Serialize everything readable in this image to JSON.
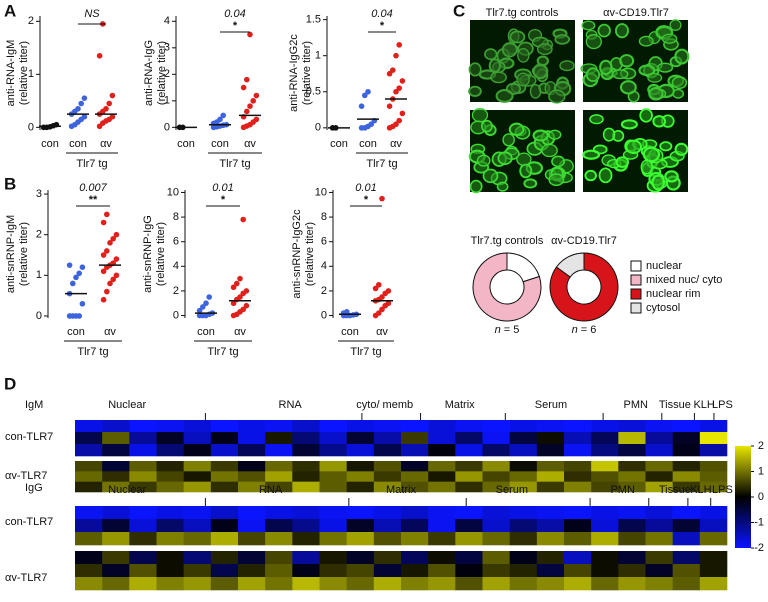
{
  "panel_labels": [
    "A",
    "B",
    "C",
    "D"
  ],
  "image_titles": [
    "Tlr7.tg controls",
    "αv-CD19.Tlr7"
  ],
  "donut_legend": {
    "categories": [
      "nuclear",
      "mixed nuc/ cyto",
      "nuclear rim",
      "cytosol"
    ],
    "colors": [
      "#ffffff",
      "#f2b6c6",
      "#d8141b",
      "#e4e4e4"
    ]
  },
  "chart_data": [
    {
      "type": "strip",
      "ylabel": "anti-RNA-IgM",
      "ylabel_unit": "(relative titer)",
      "ylim": [
        -0.05,
        2.1
      ],
      "yticks": [
        0,
        1,
        2
      ],
      "group_label": "Tlr7 tg",
      "sig_text": "NS",
      "groups": [
        {
          "category": "con",
          "color": "#111111",
          "values": [
            0,
            0,
            0.01,
            0.03,
            0.05
          ],
          "mean": 0.02
        },
        {
          "category": "con",
          "color": "#3d63dd",
          "values": [
            0.02,
            0.05,
            0.1,
            0.15,
            0.2,
            0.25,
            0.3,
            0.35,
            0.45,
            0.55
          ],
          "mean": 0.25
        },
        {
          "category": "αv",
          "color": "#e0201b",
          "values": [
            0.02,
            0.08,
            0.12,
            0.15,
            0.2,
            0.25,
            0.3,
            0.35,
            0.45,
            0.6,
            1.35,
            1.95
          ],
          "mean": 0.25
        }
      ]
    },
    {
      "type": "strip",
      "ylabel": "anti-RNA-IgG",
      "ylabel_unit": "(relative titer)",
      "ylim": [
        -0.1,
        4.2
      ],
      "yticks": [
        0,
        1,
        2,
        3,
        4
      ],
      "group_label": "Tlr7 tg",
      "sig_text": "0.04",
      "stars": "*",
      "groups": [
        {
          "category": "con",
          "color": "#111111",
          "values": [
            0,
            0
          ],
          "mean": 0
        },
        {
          "category": "con",
          "color": "#3d63dd",
          "values": [
            0,
            0.02,
            0.05,
            0.08,
            0.1,
            0.15,
            0.2,
            0.3,
            0.45
          ],
          "mean": 0.1
        },
        {
          "category": "αv",
          "color": "#e0201b",
          "values": [
            0,
            0.05,
            0.1,
            0.2,
            0.3,
            0.4,
            0.6,
            0.8,
            1.0,
            1.2,
            1.5,
            1.8,
            3.5
          ],
          "mean": 0.45
        }
      ]
    },
    {
      "type": "strip",
      "ylabel": "anti-RNA-IgG2c",
      "ylabel_unit": "(relative titer)",
      "ylim": [
        -0.03,
        1.55
      ],
      "yticks": [
        0,
        0.5,
        1,
        1.5
      ],
      "group_label": "Tlr7 tg",
      "sig_text": "0.04",
      "stars": "*",
      "groups": [
        {
          "category": "con",
          "color": "#111111",
          "values": [
            0,
            0
          ],
          "mean": 0
        },
        {
          "category": "con",
          "color": "#3d63dd",
          "values": [
            0,
            0,
            0.02,
            0.05,
            0.1,
            0.3,
            0.45,
            0.5
          ],
          "mean": 0.12
        },
        {
          "category": "αv",
          "color": "#e0201b",
          "values": [
            0,
            0.02,
            0.05,
            0.1,
            0.2,
            0.3,
            0.4,
            0.5,
            0.55,
            0.65,
            0.75,
            0.8,
            1.0,
            1.15
          ],
          "mean": 0.4
        }
      ]
    },
    {
      "type": "strip",
      "ylabel": "anti-snRNP-IgM",
      "ylabel_unit": "(relative titer)",
      "ylim": [
        -0.05,
        3.1
      ],
      "yticks": [
        0,
        1,
        2,
        3
      ],
      "group_label": "Tlr7 tg",
      "sig_text": "0.007",
      "stars": "**",
      "groups": [
        {
          "category": "con",
          "color": "#3d63dd",
          "values": [
            0,
            0,
            0,
            0,
            0.3,
            0.55,
            0.8,
            0.95,
            1.05,
            1.2,
            1.25
          ],
          "mean": 0.55
        },
        {
          "category": "αv",
          "color": "#e0201b",
          "values": [
            0.4,
            0.6,
            0.8,
            0.9,
            1.0,
            1.1,
            1.2,
            1.25,
            1.3,
            1.4,
            1.5,
            1.6,
            1.8,
            1.9,
            2.0,
            2.3,
            2.5
          ],
          "mean": 1.25
        }
      ]
    },
    {
      "type": "strip",
      "ylabel": "anti-snRNP-IgG",
      "ylabel_unit": "(relative titer)",
      "ylim": [
        -0.2,
        10.2
      ],
      "yticks": [
        0,
        2,
        4,
        6,
        8,
        10
      ],
      "group_label": "Tlr7 tg",
      "sig_text": "0.01",
      "stars": "*",
      "groups": [
        {
          "category": "con",
          "color": "#3d63dd",
          "values": [
            0,
            0,
            0,
            0.1,
            0.2,
            0.4,
            0.7,
            1.0,
            1.5
          ],
          "mean": 0.2
        },
        {
          "category": "αv",
          "color": "#e0201b",
          "values": [
            0,
            0.1,
            0.3,
            0.5,
            0.8,
            1.0,
            1.3,
            1.5,
            1.8,
            2.0,
            2.3,
            2.6,
            3.0,
            7.8
          ],
          "mean": 1.2
        }
      ]
    },
    {
      "type": "strip",
      "ylabel": "anti-snRNP-IgG2c",
      "ylabel_unit": "(relative titer)",
      "ylim": [
        -0.2,
        10.2
      ],
      "yticks": [
        0,
        2,
        4,
        6,
        8,
        10
      ],
      "group_label": "Tlr7 tg",
      "sig_text": "0.01",
      "stars": "*",
      "groups": [
        {
          "category": "con",
          "color": "#3d63dd",
          "values": [
            0,
            0,
            0,
            0.05,
            0.1,
            0.2,
            0.3
          ],
          "mean": 0.1
        },
        {
          "category": "αv",
          "color": "#e0201b",
          "values": [
            0,
            0.2,
            0.5,
            0.8,
            1.0,
            1.2,
            1.3,
            1.5,
            1.8,
            2.0,
            2.2,
            2.5,
            9.5
          ],
          "mean": 1.2
        }
      ]
    },
    {
      "type": "pie",
      "title": "Tlr7.tg controls",
      "values": [
        20,
        80,
        0,
        0
      ],
      "n_var": "n",
      "n_text": "= 5"
    },
    {
      "type": "pie",
      "title": "αv-CD19.Tlr7",
      "values": [
        0,
        0,
        85,
        15
      ],
      "n_var": "n",
      "n_text": "= 6"
    },
    {
      "type": "heatmap",
      "row_label": "IgM",
      "zlim": [
        -2,
        2
      ],
      "zticks": [
        2,
        1,
        0,
        -1,
        -2
      ],
      "groups": [
        "Nuclear",
        "RNA",
        "cyto/ memb",
        "Matrix",
        "Serum",
        "PMN",
        "Tissue",
        "KLH",
        "LPS"
      ],
      "blocks": [
        {
          "name": "con-TLR7",
          "rows": [
            [
              -1.8,
              -1.6,
              -2,
              -1.9,
              -1.7,
              -2,
              -1.8,
              -1.9,
              -1.6,
              -2,
              -1.8,
              -1.9,
              -2,
              -1.7,
              -1.9,
              -2,
              -1.8,
              -1.9,
              -2,
              -1.8,
              -1.7,
              -1.9,
              -2,
              -1.8
            ],
            [
              -0.6,
              0.8,
              -1.2,
              -0.3,
              -1.5,
              -0.2,
              -1.8,
              0.2,
              -0.9,
              -1.6,
              -0.4,
              -1.3,
              0.5,
              -1.7,
              -0.8,
              -1.9,
              -0.5,
              0.1,
              -1.4,
              -0.7,
              1.6,
              -1.2,
              -0.3,
              2
            ],
            [
              -1.3,
              -0.5,
              -1.8,
              -0.9,
              -0.2,
              -1.6,
              -0.7,
              -1.9,
              -0.4,
              -1.1,
              -1.7,
              -0.6,
              -1.4,
              -0.1,
              -1.8,
              -0.8,
              -1.5,
              -0.3,
              -1.9,
              -1.0,
              -0.5,
              -1.6,
              -0.2,
              -1.3
            ]
          ]
        },
        {
          "name": "αv-TLR7",
          "rows": [
            [
              0.6,
              -0.4,
              0.8,
              0.3,
              1.1,
              0.5,
              -0.2,
              0.9,
              0.4,
              1.3,
              0.2,
              0.7,
              -0.3,
              0.9,
              0.5,
              1.2,
              0.1,
              0.8,
              0.6,
              1.7,
              0.4,
              0.9,
              0.3,
              0.7
            ],
            [
              0.9,
              0.4,
              1.2,
              0.6,
              0.2,
              1.0,
              0.7,
              1.4,
              0.3,
              0.8,
              1.1,
              0.5,
              0.9,
              0.2,
              1.3,
              0.6,
              0.9,
              1.5,
              0.4,
              0.7,
              1.0,
              0.3,
              1.2,
              0.8
            ],
            [
              0.3,
              1.0,
              0.5,
              0.9,
              1.3,
              0.4,
              1.1,
              0.6,
              1.5,
              0.8,
              0.3,
              1.2,
              0.7,
              1.0,
              0.4,
              0.9,
              1.3,
              0.5,
              1.1,
              0.6,
              0.8,
              1.4,
              0.5,
              0.9
            ]
          ]
        }
      ]
    },
    {
      "type": "heatmap",
      "row_label": "IgG",
      "zlim": [
        -2,
        2
      ],
      "groups": [
        "Nuclear",
        "RNA",
        "Matrix",
        "Serum",
        "PMN",
        "Tissue",
        "KLH",
        "LPS"
      ],
      "blocks": [
        {
          "name": "con-TLR7",
          "rows": [
            [
              -1.9,
              -1.7,
              -2,
              -1.8,
              -1.9,
              -1.6,
              -2,
              -1.8,
              -1.7,
              -1.9,
              -2,
              -1.8,
              -1.6,
              -1.9,
              -2,
              -1.7,
              -1.8,
              -1.9,
              -2,
              -1.8,
              -1.9,
              -1.7,
              -2,
              -1.8
            ],
            [
              -1.2,
              -0.4,
              -1.7,
              -0.8,
              -1.5,
              -0.2,
              -1.9,
              -0.6,
              -1.1,
              -1.8,
              -0.3,
              -1.4,
              -0.7,
              -1.9,
              -0.5,
              -1.6,
              -0.9,
              -1.3,
              -0.2,
              -1.7,
              -0.6,
              -1.2,
              -0.4,
              -1.5
            ],
            [
              0.8,
              1.3,
              0.4,
              1.1,
              0.9,
              1.5,
              0.6,
              1.2,
              0.3,
              1.0,
              1.4,
              0.7,
              1.1,
              0.5,
              1.3,
              0.9,
              0.4,
              1.2,
              0.8,
              1.5,
              0.6,
              1.0,
              -1.5,
              0.9
            ]
          ]
        },
        {
          "name": "αv-TLR7",
          "rows": [
            [
              -0.2,
              0.5,
              -0.6,
              0.1,
              -0.9,
              0.3,
              -0.4,
              0.6,
              -1.2,
              0.2,
              -0.3,
              0.4,
              -0.7,
              0.1,
              -0.5,
              0.8,
              -0.2,
              0.3,
              -1.5,
              0.1,
              -0.4,
              0.5,
              -0.8,
              0.2
            ],
            [
              0.4,
              -0.3,
              0.7,
              0.1,
              0.5,
              -0.6,
              0.3,
              0.8,
              -0.2,
              0.4,
              0.6,
              -0.4,
              0.2,
              0.7,
              -0.1,
              0.5,
              0.3,
              -0.5,
              0.6,
              0.1,
              0.4,
              -0.3,
              0.7,
              0.2
            ],
            [
              1.2,
              0.9,
              1.5,
              1.1,
              1.3,
              0.8,
              1.4,
              1.0,
              1.6,
              1.2,
              0.9,
              1.5,
              1.1,
              1.3,
              0.7,
              1.4,
              1.0,
              1.2,
              1.5,
              0.9,
              1.3,
              1.1,
              0.8,
              1.4
            ]
          ]
        }
      ]
    }
  ]
}
